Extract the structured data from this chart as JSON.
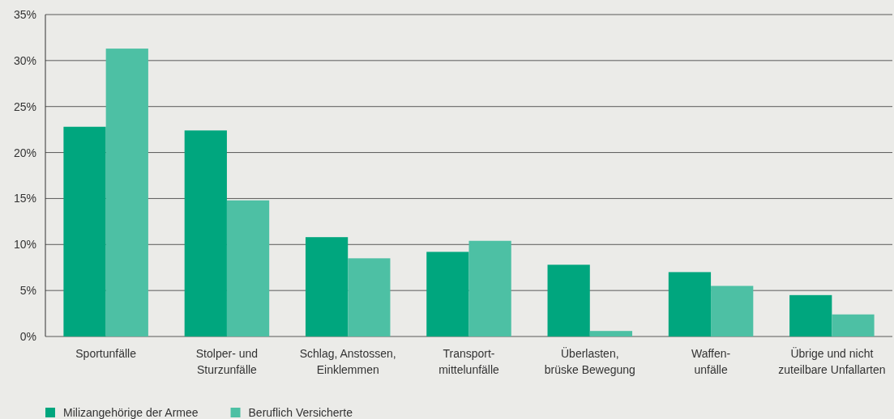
{
  "chart_data": {
    "type": "bar",
    "categories": [
      "Sportunfälle",
      "Stolper- und\nSturzunfälle",
      "Schlag, Anstossen,\nEinklemmen",
      "Transport-\nmittelunfälle",
      "Überlasten,\nbrüske Bewegung",
      "Waffen-\nunfälle",
      "Übrige und nicht\nzuteilbare Unfallarten"
    ],
    "series": [
      {
        "name": "Milizangehörige der Armee",
        "color": "#00a67e",
        "values": [
          22.8,
          22.4,
          10.8,
          9.2,
          7.8,
          7.0,
          4.5
        ]
      },
      {
        "name": "Beruflich Versicherte",
        "color": "#4dc0a4",
        "values": [
          31.3,
          14.8,
          8.5,
          10.4,
          0.6,
          5.5,
          2.4
        ]
      }
    ],
    "ylim": [
      0,
      35
    ],
    "yticks": [
      {
        "value": 0,
        "label": "0%"
      },
      {
        "value": 5,
        "label": "5%"
      },
      {
        "value": 10,
        "label": "10%"
      },
      {
        "value": 15,
        "label": "15%"
      },
      {
        "value": 20,
        "label": "20%"
      },
      {
        "value": 25,
        "label": "25%"
      },
      {
        "value": 30,
        "label": "30%"
      },
      {
        "value": 35,
        "label": "35%"
      }
    ],
    "grid": "y",
    "legend": "bottom left"
  }
}
